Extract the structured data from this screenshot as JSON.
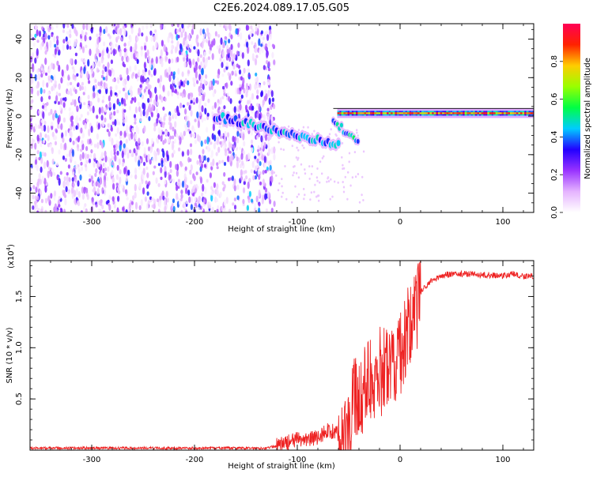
{
  "page": {
    "title": "C2E6.2024.089.17.05.G05"
  },
  "chart_data": [
    {
      "type": "heatmap",
      "title": "C2E6.2024.089.17.05.G05",
      "xlabel": "Height of straight line (km)",
      "ylabel": "Frequency (Hz)",
      "xlim": [
        -360,
        130
      ],
      "ylim": [
        -50,
        48
      ],
      "x_ticks": [
        -300,
        -200,
        -100,
        0,
        100
      ],
      "x_tick_labels": [
        "-300",
        "-200",
        "-100",
        "0",
        "100"
      ],
      "y_ticks": [
        -40,
        -20,
        0,
        20,
        40
      ],
      "y_tick_labels": [
        "-40",
        "-20",
        "0",
        "20",
        "40"
      ],
      "colorbar": {
        "label": "Normalized spectral amplitude",
        "range": [
          0,
          1
        ],
        "ticks": [
          0.0,
          0.2,
          0.4,
          0.6,
          0.8
        ],
        "tick_labels": [
          "0.0",
          "0.2",
          "0.4",
          "0.6",
          "0.8"
        ],
        "colormap": [
          "#ffffff",
          "#e5b3ff",
          "#9933ff",
          "#2200ff",
          "#00ccff",
          "#00ff44",
          "#99ff00",
          "#ffcc00",
          "#ff2200",
          "#ff0055"
        ]
      },
      "regions": [
        {
          "x_range": [
            -360,
            -122
          ],
          "y_range": [
            -50,
            48
          ],
          "level": 0.2,
          "description_level": "noise"
        },
        {
          "x_range": [
            -180,
            -60
          ],
          "y_center_start": 0,
          "y_center_end": -15,
          "level": 0.45
        },
        {
          "x_range": [
            -65,
            -40
          ],
          "y_center_start": -2,
          "y_center_end": -15,
          "level": 0.5
        },
        {
          "x_range": [
            -60,
            130
          ],
          "y_center": 1.5,
          "level": 0.9
        }
      ],
      "grid": false
    },
    {
      "type": "line",
      "xlabel": "Height of straight line (km)",
      "ylabel": "SNR (10 * v/v)",
      "y_multiplier_label": "(x10",
      "y_multiplier_exp": "4",
      "y_multiplier_close": ")",
      "xlim": [
        -360,
        130
      ],
      "ylim": [
        0,
        1.85
      ],
      "x_ticks": [
        -300,
        -200,
        -100,
        0,
        100
      ],
      "x_tick_labels": [
        "-300",
        "-200",
        "-100",
        "0",
        "100"
      ],
      "y_ticks": [
        0.5,
        1.0,
        1.5
      ],
      "y_tick_labels": [
        "0.5",
        "1.0",
        "1.5"
      ],
      "series": [
        {
          "color": "#ee2222",
          "x": [
            -360,
            -300,
            -200,
            -130,
            -120,
            -100,
            -80,
            -70,
            -60,
            -50,
            -45,
            -40,
            -30,
            -20,
            -10,
            0,
            10,
            20,
            30,
            40,
            50,
            60,
            70,
            80,
            90,
            100,
            110,
            115,
            120,
            130
          ],
          "y": [
            0.02,
            0.02,
            0.02,
            0.02,
            0.04,
            0.1,
            0.12,
            0.2,
            0.15,
            0.3,
            0.55,
            0.6,
            0.75,
            0.85,
            0.95,
            1.05,
            1.35,
            1.55,
            1.65,
            1.7,
            1.72,
            1.72,
            1.72,
            1.71,
            1.71,
            1.7,
            1.72,
            1.7,
            1.7,
            1.7
          ]
        }
      ],
      "grid": false
    }
  ]
}
